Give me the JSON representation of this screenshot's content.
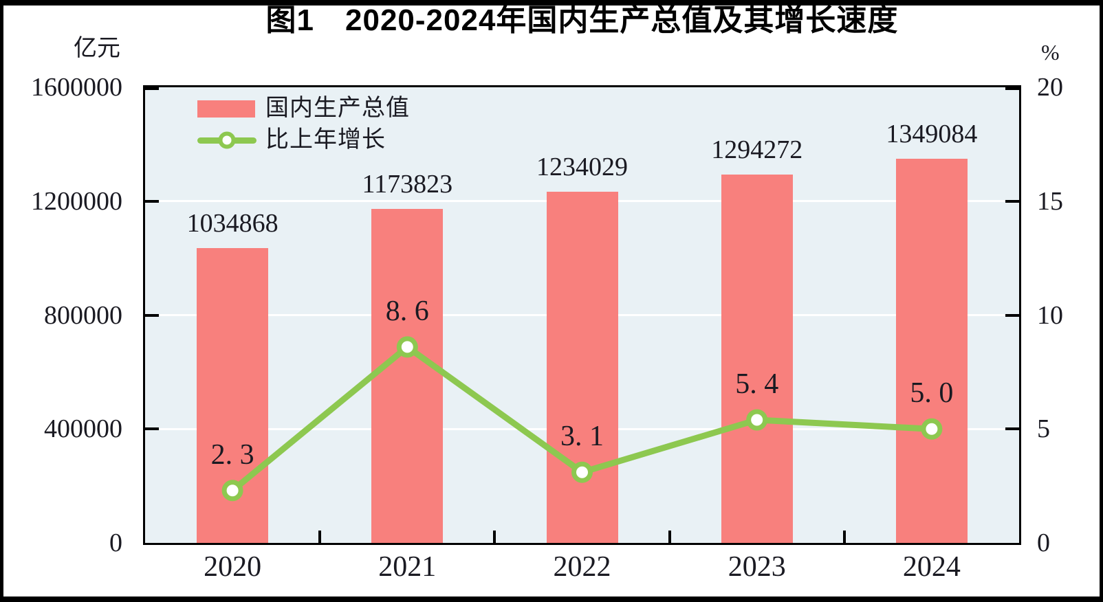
{
  "title": "图1　2020-2024年国内生产总值及其增长速度",
  "left_axis": {
    "unit": "亿元",
    "tick_labels": [
      "1600000",
      "1200000",
      "800000",
      "400000",
      "0"
    ]
  },
  "right_axis": {
    "unit": "%",
    "tick_labels": [
      "20",
      "15",
      "10",
      "5",
      "0"
    ]
  },
  "legend": {
    "items": [
      {
        "label": "国内生产总值",
        "marker": "bar-swatch"
      },
      {
        "label": "比上年增长",
        "marker": "line-marker-swatch"
      }
    ]
  },
  "colors": {
    "bar": "#F8807D",
    "line": "#8DC850",
    "marker_fill": "#FFFFFF",
    "plot_background": "#E9F1F5",
    "gridline": "#FFFFFF",
    "axis": "#000000",
    "text": "#1A1A22",
    "title": "#000000"
  },
  "chart_data": {
    "type": "bar",
    "subtype": "bar-and-line-dual-axis",
    "title": "图1　2020-2024年国内生产总值及其增长速度",
    "categories": [
      "2020",
      "2021",
      "2022",
      "2023",
      "2024"
    ],
    "series": [
      {
        "name": "国内生产总值",
        "type": "bar",
        "axis": "left",
        "unit": "亿元",
        "values": [
          1034868,
          1173823,
          1234029,
          1294272,
          1349084
        ],
        "data_labels": [
          "1034868",
          "1173823",
          "1234029",
          "1294272",
          "1349084"
        ]
      },
      {
        "name": "比上年增长",
        "type": "line",
        "axis": "right",
        "unit": "%",
        "values": [
          2.3,
          8.6,
          3.1,
          5.4,
          5.0
        ],
        "data_labels": [
          "2. 3",
          "8. 6",
          "3. 1",
          "5. 4",
          "5. 0"
        ]
      }
    ],
    "left_ylabel": "亿元",
    "right_ylabel": "%",
    "left_ylim": [
      0,
      1600000
    ],
    "right_ylim": [
      0,
      20
    ],
    "left_tick_step": 400000,
    "right_tick_step": 5,
    "grid": "horizontal white gridlines at left-axis ticks",
    "legend_position": "top-left inside plot"
  }
}
